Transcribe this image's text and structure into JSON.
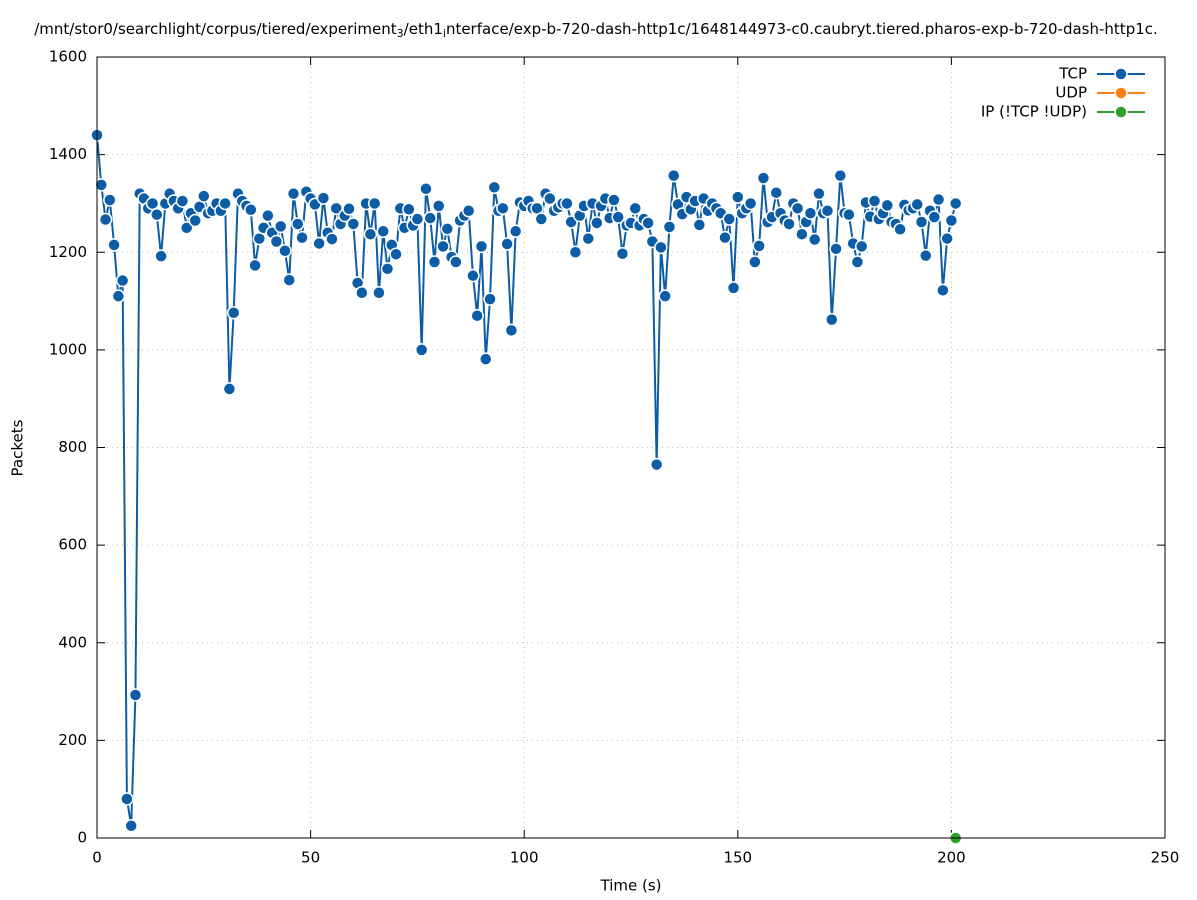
{
  "chart_data": {
    "type": "line",
    "title_parts": [
      "/mnt/stor0/searchlight/corpus/tiered/experiment",
      "3",
      "/eth1",
      "i",
      "nterface/exp-b-720-dash-http1c/1648144973-c0.caubryt.tiered.pharos-exp-b-720-dash-http1c."
    ],
    "x_label": "Time (s)",
    "y_label": "Packets",
    "xlim": [
      0,
      250
    ],
    "xticks": [
      0,
      50,
      100,
      150,
      200,
      250
    ],
    "ylim": [
      0,
      1600
    ],
    "yticks": [
      0,
      200,
      400,
      600,
      800,
      1000,
      1200,
      1400,
      1600
    ],
    "grid": true,
    "legend": "upper right",
    "series": [
      {
        "name": "TCP",
        "color": "#0c5da5",
        "x": [
          0,
          1,
          2,
          3,
          4,
          5,
          6,
          7,
          8,
          9,
          10,
          11,
          12,
          13,
          14,
          15,
          16,
          17,
          18,
          19,
          20,
          21,
          22,
          23,
          24,
          25,
          26,
          27,
          28,
          29,
          30,
          31,
          32,
          33,
          34,
          35,
          36,
          37,
          38,
          39,
          40,
          41,
          42,
          43,
          44,
          45,
          46,
          47,
          48,
          49,
          50,
          51,
          52,
          53,
          54,
          55,
          56,
          57,
          58,
          59,
          60,
          61,
          62,
          63,
          64,
          65,
          66,
          67,
          68,
          69,
          70,
          71,
          72,
          73,
          74,
          75,
          76,
          77,
          78,
          79,
          80,
          81,
          82,
          83,
          84,
          85,
          86,
          87,
          88,
          89,
          90,
          91,
          92,
          93,
          94,
          95,
          96,
          97,
          98,
          99,
          100,
          101,
          102,
          103,
          104,
          105,
          106,
          107,
          108,
          109,
          110,
          111,
          112,
          113,
          114,
          115,
          116,
          117,
          118,
          119,
          120,
          121,
          122,
          123,
          124,
          125,
          126,
          127,
          128,
          129,
          130,
          131,
          132,
          133,
          134,
          135,
          136,
          137,
          138,
          139,
          140,
          141,
          142,
          143,
          144,
          145,
          146,
          147,
          148,
          149,
          150,
          151,
          152,
          153,
          154,
          155,
          156,
          157,
          158,
          159,
          160,
          161,
          162,
          163,
          164,
          165,
          166,
          167,
          168,
          169,
          170,
          171,
          172,
          173,
          174,
          175,
          176,
          177,
          178,
          179,
          180,
          181,
          182,
          183,
          184,
          185,
          186,
          187,
          188,
          189,
          190,
          191,
          192,
          193,
          194,
          195,
          196,
          197,
          198,
          199,
          200,
          201
        ],
        "values": [
          1440,
          1338,
          1267,
          1307,
          1215,
          1110,
          1142,
          80,
          25,
          293,
          1320,
          1310,
          1290,
          1300,
          1277,
          1192,
          1300,
          1320,
          1305,
          1290,
          1305,
          1250,
          1280,
          1265,
          1293,
          1315,
          1280,
          1285,
          1300,
          1285,
          1300,
          920,
          1076,
          1320,
          1305,
          1295,
          1287,
          1173,
          1228,
          1250,
          1275,
          1240,
          1222,
          1253,
          1203,
          1143,
          1320,
          1258,
          1230,
          1324,
          1310,
          1298,
          1218,
          1311,
          1240,
          1227,
          1290,
          1258,
          1275,
          1289,
          1258,
          1137,
          1117,
          1300,
          1237,
          1300,
          1117,
          1243,
          1166,
          1215,
          1196,
          1290,
          1250,
          1288,
          1255,
          1268,
          1000,
          1330,
          1270,
          1180,
          1295,
          1212,
          1248,
          1190,
          1180,
          1265,
          1275,
          1285,
          1152,
          1070,
          1212,
          981,
          1104,
          1333,
          1285,
          1290,
          1217,
          1040,
          1243,
          1302,
          1295,
          1305,
          1290,
          1290,
          1268,
          1320,
          1310,
          1285,
          1292,
          1300,
          1300,
          1262,
          1200,
          1275,
          1295,
          1228,
          1300,
          1260,
          1295,
          1310,
          1270,
          1307,
          1272,
          1197,
          1255,
          1260,
          1290,
          1255,
          1268,
          1260,
          1222,
          765,
          1210,
          1110,
          1252,
          1357,
          1298,
          1278,
          1313,
          1288,
          1305,
          1256,
          1310,
          1285,
          1300,
          1290,
          1280,
          1230,
          1268,
          1127,
          1313,
          1280,
          1290,
          1300,
          1180,
          1213,
          1352,
          1262,
          1272,
          1322,
          1280,
          1265,
          1258,
          1300,
          1290,
          1237,
          1262,
          1280,
          1226,
          1320,
          1280,
          1285,
          1062,
          1207,
          1357,
          1280,
          1277,
          1218,
          1180,
          1212,
          1302,
          1273,
          1305,
          1268,
          1280,
          1296,
          1262,
          1258,
          1247,
          1297,
          1286,
          1290,
          1298,
          1262,
          1193,
          1285,
          1272,
          1308,
          1122,
          1228,
          1265,
          1300
        ]
      },
      {
        "name": "UDP",
        "color": "#ff7f0e",
        "x": [
          201
        ],
        "values": [
          0
        ]
      },
      {
        "name": "IP (!TCP  !UDP)",
        "color": "#2ca02c",
        "x": [
          201
        ],
        "values": [
          0
        ]
      }
    ]
  }
}
